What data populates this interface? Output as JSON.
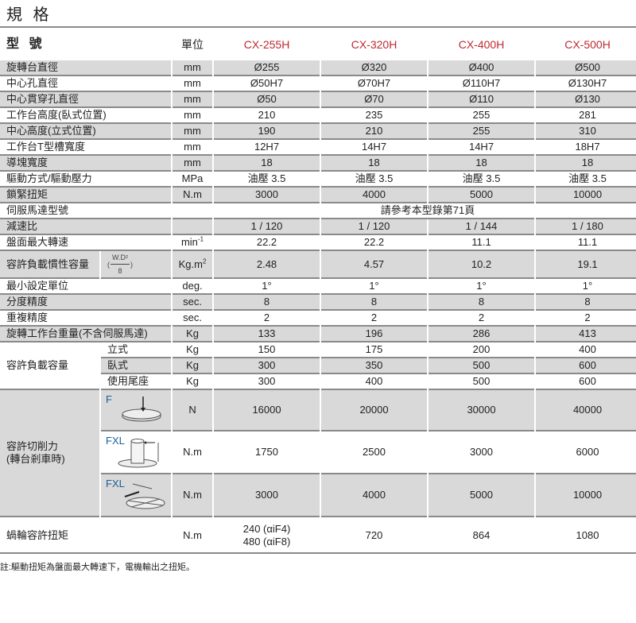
{
  "title": "規 格",
  "header": {
    "model_label": "型 號",
    "unit_label": "單位",
    "models": [
      "CX-255H",
      "CX-320H",
      "CX-400H",
      "CX-500H"
    ],
    "model_color": "#c0282f"
  },
  "rows": [
    {
      "label": "旋轉台直徑",
      "unit": "mm",
      "values": [
        "Ø255",
        "Ø320",
        "Ø400",
        "Ø500"
      ]
    },
    {
      "label": "中心孔直徑",
      "unit": "mm",
      "values": [
        "Ø50H7",
        "Ø70H7",
        "Ø110H7",
        "Ø130H7"
      ]
    },
    {
      "label": "中心貫穿孔直徑",
      "unit": "mm",
      "values": [
        "Ø50",
        "Ø70",
        "Ø110",
        "Ø130"
      ]
    },
    {
      "label": "工作台高度(臥式位置)",
      "unit": "mm",
      "values": [
        "210",
        "235",
        "255",
        "281"
      ]
    },
    {
      "label": "中心高度(立式位置)",
      "unit": "mm",
      "values": [
        "190",
        "210",
        "255",
        "310"
      ]
    },
    {
      "label": "工作台T型槽寬度",
      "unit": "mm",
      "values": [
        "12H7",
        "14H7",
        "14H7",
        "18H7"
      ]
    },
    {
      "label": "導塊寬度",
      "unit": "mm",
      "values": [
        "18",
        "18",
        "18",
        "18"
      ]
    },
    {
      "label": "驅動方式/驅動壓力",
      "unit": "MPa",
      "values": [
        "油壓 3.5",
        "油壓 3.5",
        "油壓 3.5",
        "油壓 3.5"
      ]
    },
    {
      "label": "鎖緊扭矩",
      "unit": "N.m",
      "values": [
        "3000",
        "4000",
        "5000",
        "10000"
      ]
    }
  ],
  "servo": {
    "label": "伺服馬達型號",
    "value": "請參考本型錄第71頁"
  },
  "ratio": {
    "label": "減速比",
    "values": [
      "1 / 120",
      "1 / 120",
      "1 / 144",
      "1 / 180"
    ]
  },
  "speed": {
    "label": "盤面最大轉速",
    "unit": "min",
    "unit_sup": "-1",
    "values": [
      "22.2",
      "22.2",
      "11.1",
      "11.1"
    ]
  },
  "inertia": {
    "label": "容許負載慣性容量",
    "formula_num": "W.D²",
    "formula_den": "8",
    "unit": "Kg.m",
    "unit_sup": "2",
    "values": [
      "2.48",
      "4.57",
      "10.2",
      "19.1"
    ]
  },
  "rows2": [
    {
      "label": "最小設定單位",
      "unit": "deg.",
      "values": [
        "1°",
        "1°",
        "1°",
        "1°"
      ]
    },
    {
      "label": "分度精度",
      "unit": "sec.",
      "values": [
        "8",
        "8",
        "8",
        "8"
      ]
    },
    {
      "label": "重複精度",
      "unit": "sec.",
      "values": [
        "2",
        "2",
        "2",
        "2"
      ]
    },
    {
      "label": "旋轉工作台重量(不含伺服馬達)",
      "unit": "Kg",
      "values": [
        "133",
        "196",
        "286",
        "413"
      ]
    }
  ],
  "load": {
    "label": "容許負載容量",
    "rows": [
      {
        "sub": "立式",
        "unit": "Kg",
        "values": [
          "150",
          "175",
          "200",
          "400"
        ]
      },
      {
        "sub": "臥式",
        "unit": "Kg",
        "values": [
          "300",
          "350",
          "500",
          "600"
        ]
      },
      {
        "sub": "使用尾座",
        "unit": "Kg",
        "values": [
          "300",
          "400",
          "500",
          "600"
        ]
      }
    ]
  },
  "cutting": {
    "label1": "容許切削力",
    "label2": "(轉台剎車時)",
    "rows": [
      {
        "fig": "F",
        "unit": "N",
        "values": [
          "16000",
          "20000",
          "30000",
          "40000"
        ]
      },
      {
        "fig": "FXL",
        "unit": "N.m",
        "values": [
          "1750",
          "2500",
          "3000",
          "6000"
        ]
      },
      {
        "fig": "FXL",
        "unit": "N.m",
        "values": [
          "3000",
          "4000",
          "5000",
          "10000"
        ]
      }
    ]
  },
  "worm": {
    "label": "蝸輪容許扭矩",
    "unit": "N.m",
    "first_line": "240 (αiF4)",
    "second_line": "480 (αiF8)",
    "values": [
      "720",
      "864",
      "1080"
    ]
  },
  "note": "註:驅動扭矩為盤面最大轉速下，電機輸出之扭矩。"
}
